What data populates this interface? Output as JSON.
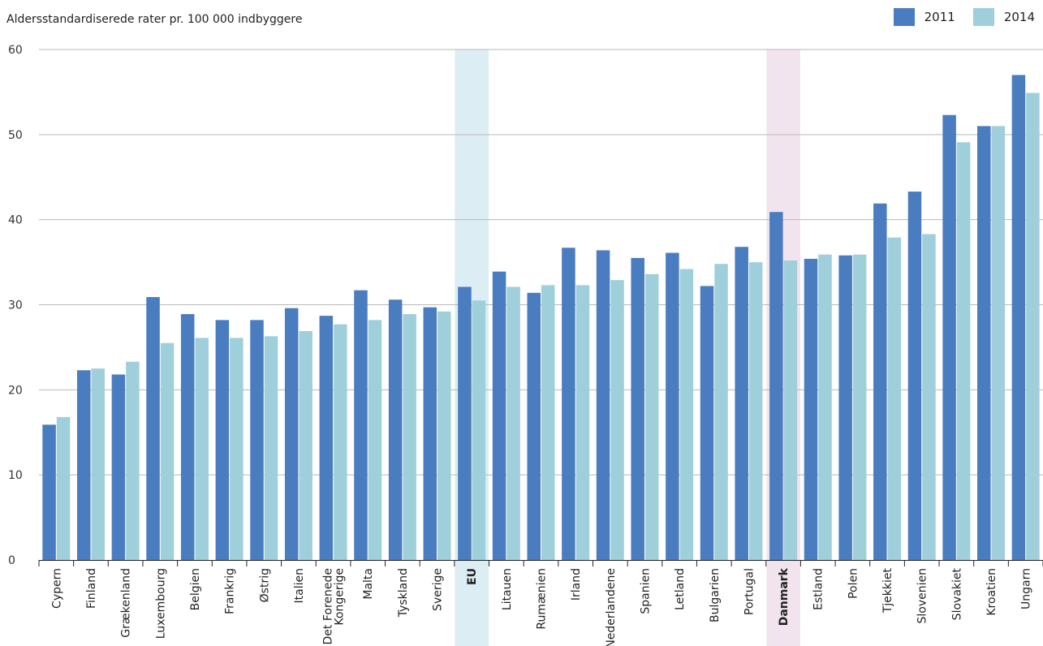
{
  "chart_data": {
    "type": "bar",
    "ylabel": "Aldersstandardiserede rater pr. 100 000 indbyggere",
    "ylim": [
      0,
      60
    ],
    "yticks": [
      0,
      10,
      20,
      30,
      40,
      50,
      60
    ],
    "grid": true,
    "legend_position": "top-right",
    "categories": [
      "Cypern",
      "Finland",
      "Grækenland",
      "Luxembourg",
      "Belgien",
      "Frankrig",
      "Østrig",
      "Italien",
      "Det Forenede Kongerige",
      "Malta",
      "Tyskland",
      "Sverige",
      "EU",
      "Litauen",
      "Rumænien",
      "Irland",
      "Nederlandene",
      "Spanien",
      "Letland",
      "Bulgarien",
      "Portugal",
      "Danmark",
      "Estland",
      "Polen",
      "Tjekkiet",
      "Slovenien",
      "Slovakiet",
      "Kroatien",
      "Ungarn"
    ],
    "highlighted": {
      "EU": "#dcedf3",
      "Danmark": "#f1e4ee"
    },
    "bold_categories": [
      "EU",
      "Danmark"
    ],
    "series": [
      {
        "name": "2011",
        "color": "#4a7cc0",
        "values": [
          15.9,
          22.3,
          21.8,
          30.9,
          28.9,
          28.2,
          28.2,
          29.6,
          28.7,
          31.7,
          30.6,
          29.7,
          32.1,
          33.9,
          31.4,
          36.7,
          36.4,
          35.5,
          36.1,
          32.2,
          36.8,
          40.9,
          35.4,
          35.8,
          41.9,
          43.3,
          52.3,
          51.0,
          57.0
        ]
      },
      {
        "name": "2014",
        "color": "#9fcfda",
        "values": [
          16.8,
          22.5,
          23.3,
          25.5,
          26.1,
          26.1,
          26.3,
          26.9,
          27.7,
          28.2,
          28.9,
          29.2,
          30.5,
          32.1,
          32.3,
          32.3,
          32.9,
          33.6,
          34.2,
          34.8,
          35.0,
          35.2,
          35.9,
          35.9,
          37.9,
          38.3,
          49.1,
          51.0,
          54.9
        ]
      }
    ]
  }
}
